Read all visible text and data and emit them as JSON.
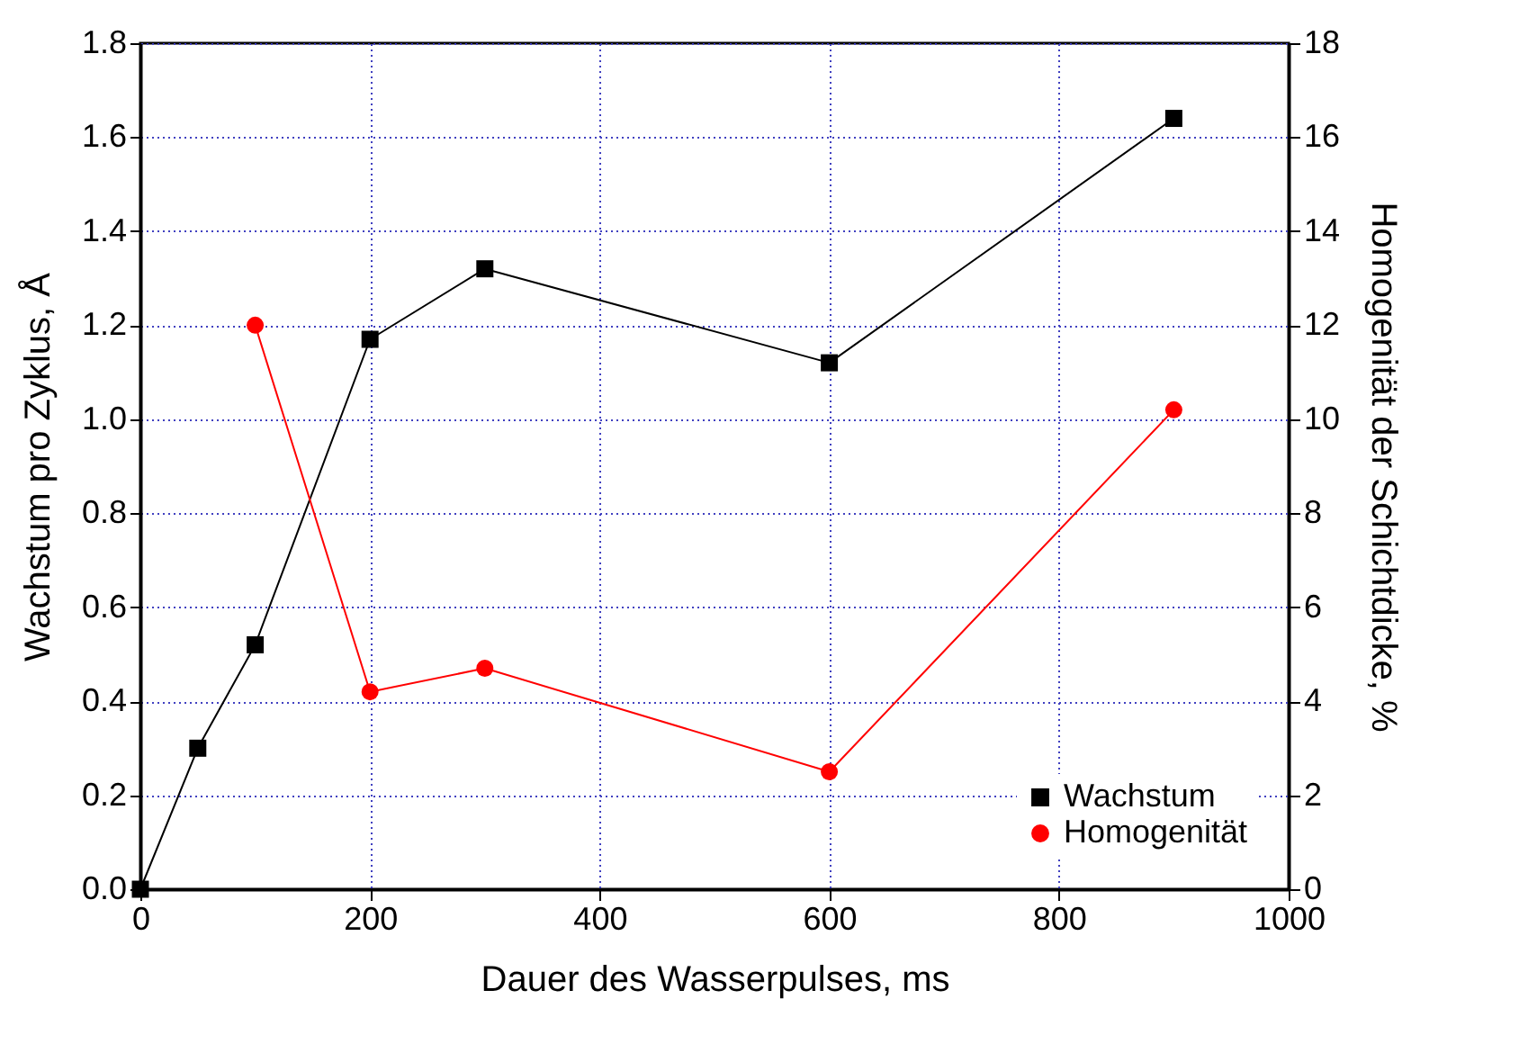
{
  "chart_data": {
    "type": "line",
    "xlabel": "Dauer des Wasserpulses, ms",
    "ylabel": "Wachstum pro Zyklus, Å",
    "y2label": "Homogenität der Schichtdicke, %",
    "series": [
      {
        "name": "Wachstum",
        "color": "#000000",
        "marker": "square",
        "x": [
          0,
          50,
          100,
          200,
          300,
          600,
          900
        ],
        "values": [
          0.0,
          0.3,
          0.52,
          1.17,
          1.32,
          1.12,
          1.64
        ]
      },
      {
        "name": "Homogenität",
        "color": "#ff0000",
        "marker": "circle",
        "axis": "y2",
        "x": [
          100,
          200,
          300,
          600,
          900
        ],
        "values": [
          12.0,
          4.2,
          4.7,
          2.5,
          10.2
        ]
      }
    ],
    "xlim": [
      0,
      1000
    ],
    "xticks": [
      0,
      200,
      400,
      600,
      800,
      1000
    ],
    "ylim": [
      0,
      1.8
    ],
    "yticks": [
      {
        "value": 0,
        "label": "0.0"
      },
      {
        "value": 0.2,
        "label": "0.2"
      },
      {
        "value": 0.4,
        "label": "0.4"
      },
      {
        "value": 0.6,
        "label": "0.6"
      },
      {
        "value": 0.8,
        "label": "0.8"
      },
      {
        "value": 1.0,
        "label": "1.0"
      },
      {
        "value": 1.2,
        "label": "1.2"
      },
      {
        "value": 1.4,
        "label": "1.4"
      },
      {
        "value": 1.6,
        "label": "1.6"
      },
      {
        "value": 1.8,
        "label": "1.8"
      }
    ],
    "y2lim": [
      0,
      18
    ],
    "y2ticks": [
      0,
      2,
      4,
      6,
      8,
      10,
      12,
      14,
      16,
      18
    ],
    "grid": true,
    "legend": "bottom right",
    "line_style": "solid"
  }
}
